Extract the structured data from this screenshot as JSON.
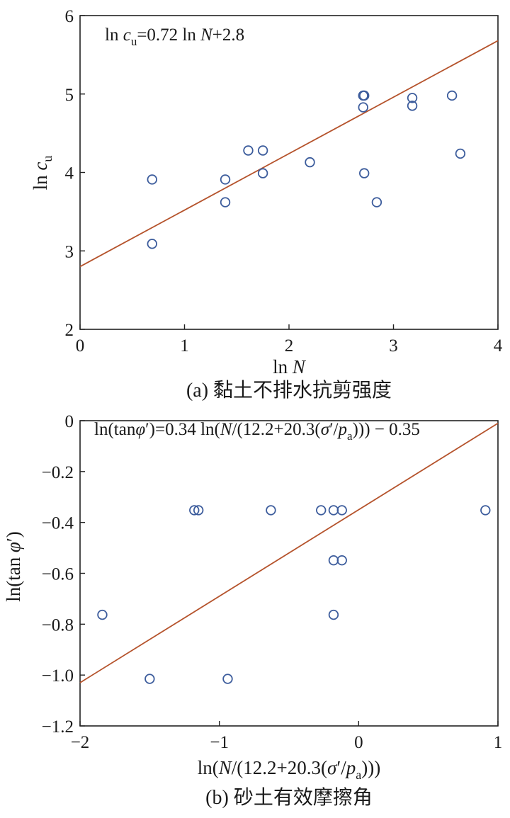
{
  "chart_data": [
    {
      "type": "scatter",
      "xlabel": "ln N",
      "ylabel": "ln c_u",
      "xlim": [
        0,
        4
      ],
      "ylim": [
        2,
        6
      ],
      "xticks": [
        0,
        1,
        2,
        3,
        4
      ],
      "yticks": [
        2,
        3,
        4,
        5,
        6
      ],
      "xtick_labels": [
        "0",
        "1",
        "2",
        "3",
        "4"
      ],
      "ytick_labels": [
        "2",
        "3",
        "4",
        "5",
        "6"
      ],
      "equation": "ln c_u=0.72 ln N+2.8",
      "fit_line": {
        "slope": 0.72,
        "intercept": 2.8
      },
      "caption": "(a) 黏土不排水抗剪强度",
      "grid": false,
      "colors": {
        "points": "#3c5c9c",
        "line": "#b5532c"
      },
      "x": [
        0.69,
        0.69,
        1.39,
        1.39,
        1.61,
        1.75,
        1.75,
        2.2,
        2.71,
        2.71,
        2.72,
        2.72,
        2.84,
        3.18,
        3.18,
        3.56,
        3.64
      ],
      "y": [
        3.91,
        3.09,
        3.91,
        3.62,
        4.28,
        4.28,
        3.99,
        4.13,
        4.83,
        4.98,
        3.99,
        4.98,
        3.62,
        4.95,
        4.85,
        4.98,
        4.24
      ]
    },
    {
      "type": "scatter",
      "xlabel": "ln(N/(12.2+20.3(σ′/p_a)))",
      "ylabel": "ln(tan φ′)",
      "xlim": [
        -2,
        1
      ],
      "ylim": [
        -1.2,
        0
      ],
      "xticks": [
        -2,
        -1,
        0,
        1
      ],
      "yticks": [
        0,
        -0.2,
        -0.4,
        -0.6,
        -0.8,
        -1.0,
        -1.2
      ],
      "xtick_labels": [
        "−2",
        "−1",
        "0",
        "1"
      ],
      "ytick_labels": [
        "0",
        "−0.2",
        "−0.4",
        "−0.6",
        "−0.8",
        "−1.0",
        "−1.2"
      ],
      "equation": "ln(tanφ′)=0.34 ln(N/(12.2+20.3(σ′/p_a)))−0.35",
      "fit_line": {
        "slope": 0.34,
        "intercept": -0.35
      },
      "caption": "(b) 砂土有效摩擦角",
      "grid": false,
      "colors": {
        "points": "#3c5c9c",
        "line": "#b5532c"
      },
      "x": [
        -1.84,
        -1.5,
        -1.18,
        -1.15,
        -0.94,
        -0.63,
        -0.27,
        -0.18,
        -0.18,
        -0.18,
        -0.12,
        -0.12,
        0.91
      ],
      "y": [
        -0.763,
        -1.015,
        -0.352,
        -0.352,
        -1.015,
        -0.352,
        -0.352,
        -0.352,
        -0.549,
        -0.763,
        -0.352,
        -0.549,
        -0.352
      ]
    }
  ]
}
